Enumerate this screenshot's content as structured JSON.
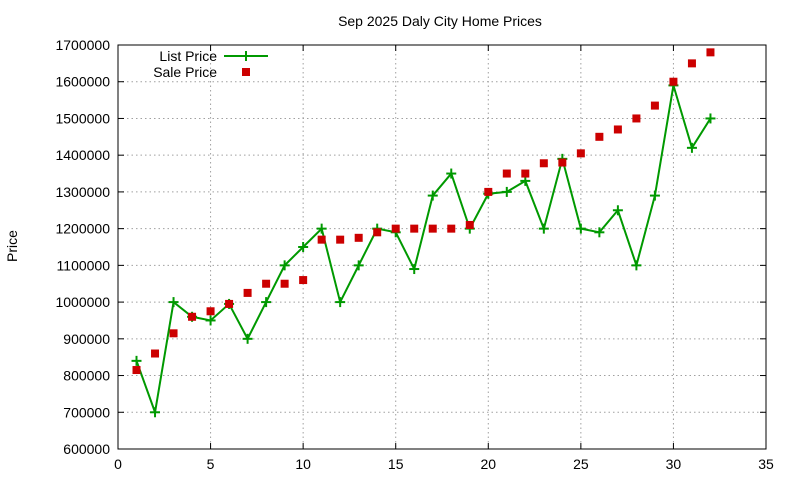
{
  "chart_data": {
    "type": "line",
    "title": "Sep 2025 Daly City Home Prices",
    "xlabel": "",
    "ylabel": "Price",
    "xlim": [
      0,
      35
    ],
    "ylim": [
      600000,
      1700000
    ],
    "xticks": [
      "0",
      "5",
      "10",
      "15",
      "20",
      "25",
      "30",
      "35"
    ],
    "yticks": [
      "600000",
      "700000",
      "800000",
      "900000",
      "1000000",
      "1100000",
      "1200000",
      "1300000",
      "1400000",
      "1500000",
      "1600000",
      "1700000"
    ],
    "grid": true,
    "legend_position": "top-left",
    "series": [
      {
        "name": "List Price",
        "style": "line-with-plus-markers",
        "color": "#009900",
        "x": [
          1,
          2,
          3,
          4,
          5,
          6,
          7,
          8,
          9,
          10,
          11,
          12,
          13,
          14,
          15,
          16,
          17,
          18,
          19,
          20,
          21,
          22,
          23,
          24,
          25,
          26,
          27,
          28,
          29,
          30,
          31,
          32
        ],
        "y": [
          840000,
          700000,
          1000000,
          960000,
          950000,
          995000,
          900000,
          1000000,
          1100000,
          1150000,
          1200000,
          1000000,
          1100000,
          1200000,
          1190000,
          1090000,
          1290000,
          1350000,
          1200000,
          1295000,
          1300000,
          1330000,
          1200000,
          1390000,
          1200000,
          1190000,
          1250000,
          1100000,
          1290000,
          1590000,
          1420000,
          1500000
        ]
      },
      {
        "name": "Sale Price",
        "style": "square-markers",
        "color": "#cc0000",
        "x": [
          1,
          2,
          3,
          4,
          5,
          6,
          7,
          8,
          9,
          10,
          11,
          12,
          13,
          14,
          15,
          16,
          17,
          18,
          19,
          20,
          21,
          22,
          23,
          24,
          25,
          26,
          27,
          28,
          29,
          30,
          31,
          32
        ],
        "y": [
          815000,
          860000,
          915000,
          960000,
          975000,
          995000,
          1025000,
          1050000,
          1050000,
          1060000,
          1170000,
          1170000,
          1175000,
          1190000,
          1200000,
          1200000,
          1200000,
          1200000,
          1210000,
          1300000,
          1350000,
          1350000,
          1378000,
          1380000,
          1405000,
          1450000,
          1470000,
          1500000,
          1535000,
          1600000,
          1650000,
          1680000
        ]
      }
    ]
  }
}
